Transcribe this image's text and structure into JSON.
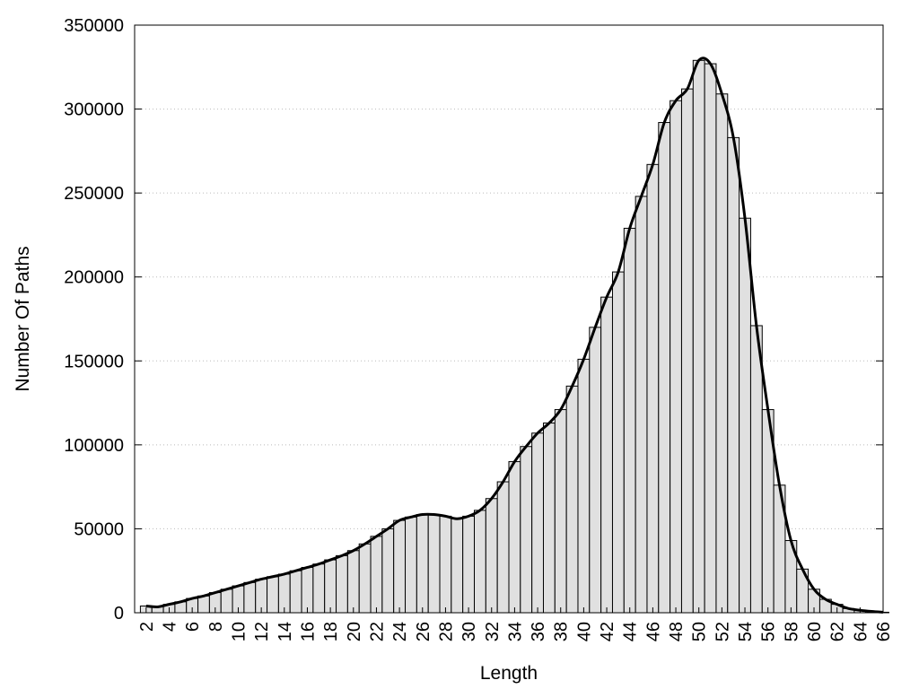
{
  "chart_data": {
    "type": "bar",
    "xlabel": "Length",
    "ylabel": "Number Of Paths",
    "xlim": [
      1,
      66
    ],
    "ylim": [
      0,
      350000
    ],
    "yticks": [
      0,
      50000,
      100000,
      150000,
      200000,
      250000,
      300000,
      350000
    ],
    "xticks": [
      2,
      4,
      6,
      8,
      10,
      12,
      14,
      16,
      18,
      20,
      22,
      24,
      26,
      28,
      30,
      32,
      34,
      36,
      38,
      40,
      42,
      44,
      46,
      48,
      50,
      52,
      54,
      56,
      58,
      60,
      62,
      64,
      66
    ],
    "grid": "horizontal-dotted",
    "bar_color": "#e0e0e0",
    "curve_color": "#000000",
    "x": [
      2,
      3,
      4,
      5,
      6,
      7,
      8,
      9,
      10,
      11,
      12,
      13,
      14,
      15,
      16,
      17,
      18,
      19,
      20,
      21,
      22,
      23,
      24,
      25,
      26,
      27,
      28,
      29,
      30,
      31,
      32,
      33,
      34,
      35,
      36,
      37,
      38,
      39,
      40,
      41,
      42,
      43,
      44,
      45,
      46,
      47,
      48,
      49,
      50,
      51,
      52,
      53,
      54,
      55,
      56,
      57,
      58,
      59,
      60,
      61,
      62,
      63,
      64,
      65,
      66
    ],
    "values": [
      4000,
      3500,
      5000,
      6500,
      8500,
      10000,
      12000,
      14000,
      16000,
      18000,
      20000,
      21500,
      23000,
      25000,
      27000,
      29000,
      31500,
      34000,
      37000,
      41000,
      45500,
      50000,
      55000,
      57000,
      58500,
      58500,
      57500,
      56000,
      57500,
      61000,
      68000,
      78000,
      90000,
      99000,
      107000,
      113000,
      121000,
      135000,
      151000,
      170000,
      188000,
      203000,
      229000,
      248000,
      267000,
      292000,
      305000,
      312000,
      329000,
      327000,
      309000,
      283000,
      235000,
      171000,
      121000,
      76000,
      43000,
      26000,
      14000,
      8000,
      5000,
      2500,
      1500,
      800,
      300
    ]
  }
}
